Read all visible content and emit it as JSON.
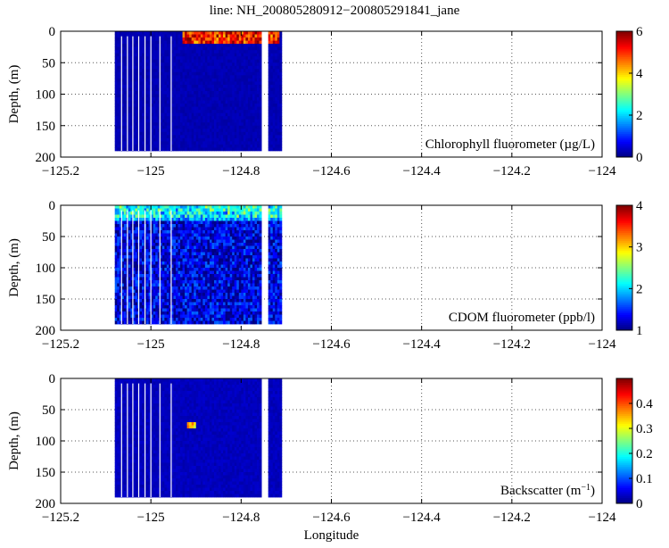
{
  "figure": {
    "title": "line: NH_200805280912−200805291841_jane",
    "xlabel": "Longitude"
  },
  "chart_data": [
    {
      "type": "heatmap",
      "variable_label": "Chlorophyll fluorometer (µg/L)",
      "ylabel": "Depth, (m)",
      "xlim": [
        -125.2,
        -124
      ],
      "ylim": [
        200,
        0
      ],
      "x_ticks": [
        "−125.2",
        "−125",
        "−124.8",
        "−124.6",
        "−124.4",
        "−124.2",
        "−124"
      ],
      "y_ticks": [
        "0",
        "50",
        "100",
        "150",
        "200"
      ],
      "colorbar": {
        "range": [
          0,
          6
        ],
        "ticks": [
          "0",
          "2",
          "4",
          "6"
        ]
      },
      "data_extent_x": [
        -125.08,
        -124.71
      ],
      "data_extent_depth": [
        0,
        190
      ],
      "gap_x": -124.75,
      "features": [
        {
          "x_range": [
            -124.93,
            -124.72
          ],
          "depth_range": [
            5,
            15
          ],
          "value": 5.5
        }
      ],
      "background_value": 0.3,
      "grid": true
    },
    {
      "type": "heatmap",
      "variable_label": "CDOM fluorometer (ppb/l)",
      "ylabel": "Depth, (m)",
      "xlim": [
        -125.2,
        -124
      ],
      "ylim": [
        200,
        0
      ],
      "x_ticks": [
        "−125.2",
        "−125",
        "−124.8",
        "−124.6",
        "−124.4",
        "−124.2",
        "−124"
      ],
      "y_ticks": [
        "0",
        "50",
        "100",
        "150",
        "200"
      ],
      "colorbar": {
        "range": [
          1,
          4
        ],
        "ticks": [
          "1",
          "2",
          "3",
          "4"
        ]
      },
      "data_extent_x": [
        -125.08,
        -124.71
      ],
      "data_extent_depth": [
        0,
        190
      ],
      "gap_x": -124.75,
      "features": [
        {
          "x_range": [
            -125.08,
            -124.71
          ],
          "depth_range": [
            0,
            20
          ],
          "value": 2.0
        }
      ],
      "background_value": 1.3,
      "grid": true
    },
    {
      "type": "heatmap",
      "variable_label": "Backscatter (m",
      "variable_label_sup": "−1",
      "variable_label_end": ")",
      "ylabel": "Depth, (m)",
      "xlim": [
        -125.2,
        -124
      ],
      "ylim": [
        200,
        0
      ],
      "x_ticks": [
        "−125.2",
        "−125",
        "−124.8",
        "−124.6",
        "−124.4",
        "−124.2",
        "−124"
      ],
      "y_ticks": [
        "0",
        "50",
        "100",
        "150",
        "200"
      ],
      "colorbar": {
        "range": [
          0,
          0.5
        ],
        "ticks": [
          "0",
          "0.1",
          "0.2",
          "0.3",
          "0.4"
        ]
      },
      "data_extent_x": [
        -125.08,
        -124.71
      ],
      "data_extent_depth": [
        0,
        190
      ],
      "gap_x": -124.75,
      "features": [
        {
          "x_range": [
            -124.92,
            -124.9
          ],
          "depth_range": [
            75,
            78
          ],
          "value": 0.35
        }
      ],
      "background_value": 0.03,
      "grid": true
    }
  ]
}
